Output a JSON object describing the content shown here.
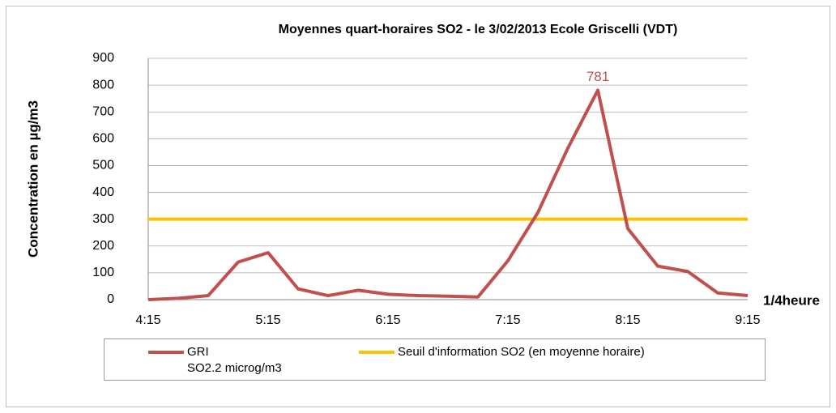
{
  "chart_data": {
    "type": "line",
    "title": "Moyennes quart-horaires SO2  -  le 3/02/2013  Ecole Griscelli (VDT)",
    "ylabel": "Concentration en µg/m3",
    "xlabel": "1/4heure",
    "categories": [
      "4:15",
      null,
      null,
      null,
      "5:15",
      null,
      null,
      null,
      "6:15",
      null,
      null,
      null,
      "7:15",
      null,
      null,
      null,
      "8:15",
      null,
      null,
      null,
      "9:15"
    ],
    "series": [
      {
        "name": "GRI\nSO2.2 microg/m3",
        "color": "#c0504d",
        "values": [
          0,
          5,
          15,
          140,
          175,
          40,
          15,
          35,
          20,
          15,
          13,
          10,
          145,
          325,
          565,
          781,
          265,
          125,
          105,
          25,
          15
        ],
        "value_labels": [
          null,
          null,
          null,
          null,
          null,
          null,
          null,
          null,
          null,
          null,
          null,
          null,
          null,
          null,
          null,
          "781",
          null,
          null,
          null,
          null,
          null
        ]
      },
      {
        "name": "Seuil d'information SO2 (en moyenne horaire)",
        "color": "#ffc000",
        "values": [
          300,
          300,
          300,
          300,
          300,
          300,
          300,
          300,
          300,
          300,
          300,
          300,
          300,
          300,
          300,
          300,
          300,
          300,
          300,
          300,
          300
        ]
      }
    ],
    "ylim": [
      0,
      900
    ],
    "yticks": [
      0,
      100,
      200,
      300,
      400,
      500,
      600,
      700,
      800,
      900
    ],
    "grid": true
  }
}
